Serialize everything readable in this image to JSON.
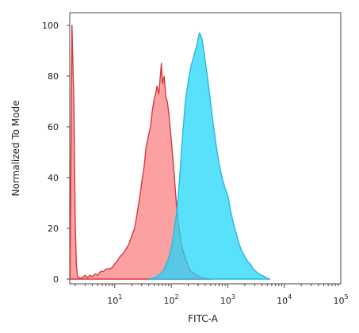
{
  "chart_data": {
    "type": "area",
    "xlabel": "FITC-A",
    "ylabel": "Normalized To Mode",
    "xscale": "log",
    "xlim": [
      1.6,
      100000
    ],
    "ylim": [
      0,
      100
    ],
    "grid": false,
    "legend": "none",
    "y_ticks": [
      {
        "value": 0,
        "label": "0"
      },
      {
        "value": 20,
        "label": "20"
      },
      {
        "value": 40,
        "label": "40"
      },
      {
        "value": 60,
        "label": "60"
      },
      {
        "value": 80,
        "label": "80"
      },
      {
        "value": 100,
        "label": "100"
      }
    ],
    "x_ticks": [
      {
        "value": 10,
        "base": "10",
        "exp": "1"
      },
      {
        "value": 100,
        "base": "10",
        "exp": "2"
      },
      {
        "value": 1000,
        "base": "10",
        "exp": "3"
      },
      {
        "value": 10000,
        "base": "10",
        "exp": "4"
      },
      {
        "value": 100000,
        "base": "10",
        "exp": "5"
      }
    ],
    "series": [
      {
        "fill": "#fa8a8c",
        "stroke": "#d8373b",
        "opacity": 0.8,
        "x": [
          1.62,
          1.75,
          1.9,
          2.0,
          2.1,
          2.2,
          2.4,
          2.6,
          2.8,
          3.0,
          3.3,
          3.6,
          4.0,
          4.5,
          5.0,
          5.6,
          6.3,
          7.0,
          8.0,
          9.0,
          10.0,
          11.0,
          12.5,
          14.0,
          16.0,
          18.0,
          20.0,
          22.5,
          25.0,
          28.0,
          30.0,
          33.0,
          36.0,
          40.0,
          43.0,
          46.0,
          50.0,
          53.0,
          56.0,
          60.0,
          63.0,
          67.0,
          70.0,
          75.0,
          80.0,
          85.0,
          90.0,
          100.0,
          112.0,
          126.0,
          141.0,
          158.0,
          178.0,
          200.0,
          224.0,
          251.0,
          282.0,
          316.0,
          355.0,
          400.0,
          450.0,
          500.0
        ],
        "y": [
          0,
          100,
          68,
          22,
          5,
          1,
          0.5,
          0.3,
          1,
          1.5,
          0.5,
          1.5,
          1,
          2,
          1.5,
          3,
          3,
          4,
          4,
          4.5,
          6,
          7,
          9,
          10,
          12,
          14,
          17,
          20,
          26,
          33,
          38,
          44,
          52,
          57,
          60,
          66,
          71,
          73,
          76,
          73,
          78,
          85,
          77,
          80,
          72,
          70,
          66,
          55,
          42,
          27,
          18,
          12,
          8,
          5,
          3,
          2.5,
          1.5,
          1,
          0.5,
          0.3,
          0.1,
          0
        ]
      },
      {
        "fill": "#22d5fa",
        "stroke": "#2ab8dc",
        "opacity": 0.75,
        "x": [
          40.0,
          50.0,
          56.0,
          63.0,
          71.0,
          79.0,
          89.0,
          100.0,
          112.0,
          126.0,
          141.0,
          158.0,
          178.0,
          200.0,
          224.0,
          251.0,
          282.0,
          300.0,
          316.0,
          335.0,
          355.0,
          376.0,
          400.0,
          447.0,
          501.0,
          562.0,
          631.0,
          708.0,
          794.0,
          891.0,
          1000.0,
          1122.0,
          1259.0,
          1413.0,
          1585.0,
          1778.0,
          1995.0,
          2239.0,
          2512.0,
          2818.0,
          3162.0,
          3548.0,
          3981.0,
          4467.0,
          5012.0,
          5600.0
        ],
        "y": [
          0,
          0.5,
          1,
          2,
          3,
          5,
          8,
          12,
          19,
          27,
          40,
          56,
          70,
          78,
          84,
          88,
          92,
          95,
          97,
          96,
          94,
          90,
          86,
          78,
          69,
          60,
          52,
          45,
          40,
          36,
          33,
          27,
          22,
          18,
          14,
          11,
          9,
          7,
          6,
          4,
          3,
          2,
          1.5,
          1,
          0.3,
          0
        ]
      }
    ]
  }
}
